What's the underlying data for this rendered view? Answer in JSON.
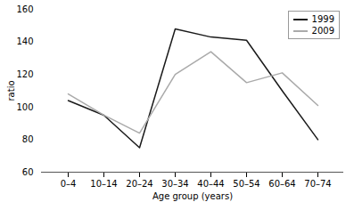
{
  "chart_data": {
    "type": "line",
    "xlabel": "Age group (years)",
    "ylabel": "ratio",
    "categories": [
      "0–4",
      "10–14",
      "20–24",
      "30–34",
      "40–44",
      "50–54",
      "60–64",
      "70–74"
    ],
    "series": [
      {
        "name": "1999",
        "color": "#1a1a1a",
        "values": [
          104,
          95,
          75,
          148,
          143,
          141,
          110,
          80
        ]
      },
      {
        "name": "2009",
        "color": "#aaaaaa",
        "values": [
          108,
          95,
          84,
          120,
          134,
          115,
          121,
          101
        ]
      }
    ],
    "ylim": [
      60,
      160
    ],
    "yticks": [
      60,
      80,
      100,
      120,
      140,
      160
    ],
    "grid": false,
    "legend": "upper right"
  }
}
